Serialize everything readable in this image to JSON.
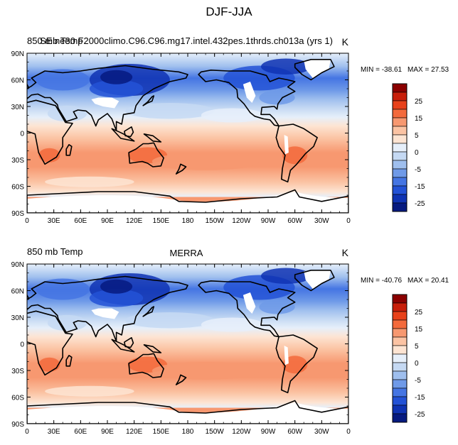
{
  "figure": {
    "title": "DJF-JJA"
  },
  "panels": [
    {
      "left_label": "850 mb Temp",
      "case_name": "SE ne30 F2000climo.C96.C96.mg17.intel.432pes.1thrds.ch013a (yrs 1)",
      "units": "K",
      "min_label": "MIN = -38.61",
      "max_label": "MAX =  27.53"
    },
    {
      "left_label": "850 mb Temp",
      "case_name": "MERRA",
      "units": "K",
      "min_label": "MIN = -40.76",
      "max_label": "MAX =  20.41"
    }
  ],
  "lat_ticks": [
    "90N",
    "60N",
    "30N",
    "0",
    "30S",
    "60S",
    "90S"
  ],
  "lon_ticks": [
    "0",
    "30E",
    "60E",
    "90E",
    "120E",
    "150E",
    "180",
    "150W",
    "120W",
    "90W",
    "60W",
    "30W",
    "0"
  ],
  "colorbar": {
    "labels": [
      "25",
      "15",
      "5",
      "0",
      "-5",
      "-15",
      "-25"
    ],
    "colors": [
      "#8b0000",
      "#c81e0a",
      "#e8411a",
      "#f36a3c",
      "#f79870",
      "#fbc3a3",
      "#fde4d2",
      "#e6effa",
      "#c5d9f3",
      "#9fbfee",
      "#6f9ae8",
      "#4575e3",
      "#2352d6",
      "#0f33b3",
      "#061a80"
    ]
  }
}
